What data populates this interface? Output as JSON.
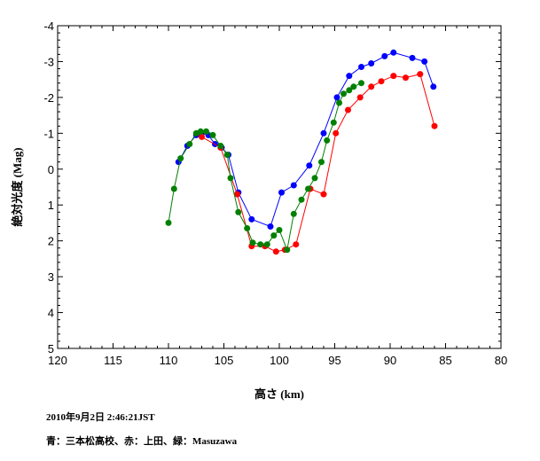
{
  "chart_data": {
    "type": "line",
    "title": "",
    "xlabel": "高さ (km)",
    "ylabel": "絶対光度 (Mag)",
    "xlim": [
      120,
      80
    ],
    "ylim": [
      5,
      -4
    ],
    "x_reversed": true,
    "y_reversed": true,
    "xticks": [
      "120",
      "115",
      "110",
      "105",
      "100",
      "95",
      "90",
      "85",
      "80"
    ],
    "yticks": [
      "-4",
      "-3",
      "-2",
      "-1",
      "0",
      "1",
      "2",
      "3",
      "4",
      "5"
    ],
    "grid": false,
    "series": [
      {
        "color": "#0000ff",
        "points": [
          [
            109.1,
            -0.2
          ],
          [
            108.3,
            -0.65
          ],
          [
            107.5,
            -0.95
          ],
          [
            107.0,
            -1.0
          ],
          [
            106.4,
            -0.95
          ],
          [
            105.8,
            -0.7
          ],
          [
            105.2,
            -0.6
          ],
          [
            104.6,
            -0.4
          ],
          [
            103.7,
            0.65
          ],
          [
            102.5,
            1.4
          ],
          [
            100.8,
            1.6
          ],
          [
            99.8,
            0.65
          ],
          [
            98.7,
            0.45
          ],
          [
            97.3,
            -0.1
          ],
          [
            96.0,
            -1.0
          ],
          [
            94.8,
            -2.0
          ],
          [
            93.7,
            -2.6
          ],
          [
            92.6,
            -2.85
          ],
          [
            91.7,
            -2.95
          ],
          [
            90.5,
            -3.15
          ],
          [
            89.7,
            -3.25
          ],
          [
            88.0,
            -3.1
          ],
          [
            86.9,
            -3.0
          ],
          [
            86.1,
            -2.3
          ]
        ]
      },
      {
        "color": "#ff0000",
        "points": [
          [
            107.0,
            -0.9
          ],
          [
            105.3,
            -0.6
          ],
          [
            103.8,
            0.7
          ],
          [
            102.5,
            2.15
          ],
          [
            101.3,
            2.15
          ],
          [
            100.3,
            2.3
          ],
          [
            99.5,
            2.25
          ],
          [
            98.5,
            2.1
          ],
          [
            97.2,
            0.55
          ],
          [
            96.0,
            0.7
          ],
          [
            94.9,
            -1.0
          ],
          [
            93.8,
            -1.65
          ],
          [
            92.7,
            -2.0
          ],
          [
            91.7,
            -2.3
          ],
          [
            90.8,
            -2.45
          ],
          [
            89.7,
            -2.6
          ],
          [
            88.6,
            -2.55
          ],
          [
            87.3,
            -2.65
          ],
          [
            86.0,
            -1.2
          ]
        ]
      },
      {
        "color": "#008000",
        "points": [
          [
            110.0,
            1.5
          ],
          [
            109.5,
            0.55
          ],
          [
            108.9,
            -0.3
          ],
          [
            108.1,
            -0.7
          ],
          [
            107.5,
            -1.0
          ],
          [
            107.1,
            -1.05
          ],
          [
            106.6,
            -1.05
          ],
          [
            106.0,
            -0.95
          ],
          [
            105.3,
            -0.65
          ],
          [
            104.7,
            -0.4
          ],
          [
            104.4,
            0.25
          ],
          [
            103.7,
            1.2
          ],
          [
            102.9,
            1.65
          ],
          [
            102.4,
            2.05
          ],
          [
            101.7,
            2.1
          ],
          [
            101.1,
            2.1
          ],
          [
            100.5,
            1.85
          ],
          [
            100.0,
            1.7
          ],
          [
            99.3,
            2.25
          ],
          [
            98.7,
            1.25
          ],
          [
            98.0,
            0.85
          ],
          [
            97.4,
            0.55
          ],
          [
            96.8,
            0.25
          ],
          [
            96.2,
            -0.2
          ],
          [
            95.7,
            -0.8
          ],
          [
            95.1,
            -1.3
          ],
          [
            94.6,
            -1.85
          ],
          [
            94.2,
            -2.1
          ],
          [
            93.7,
            -2.2
          ],
          [
            93.3,
            -2.3
          ],
          [
            92.6,
            -2.4
          ]
        ]
      }
    ]
  },
  "captions": {
    "date": "2010年9月2日 2:46:21JST",
    "legend": "青：三本松高校、赤：上田、緑：Masuzawa"
  }
}
